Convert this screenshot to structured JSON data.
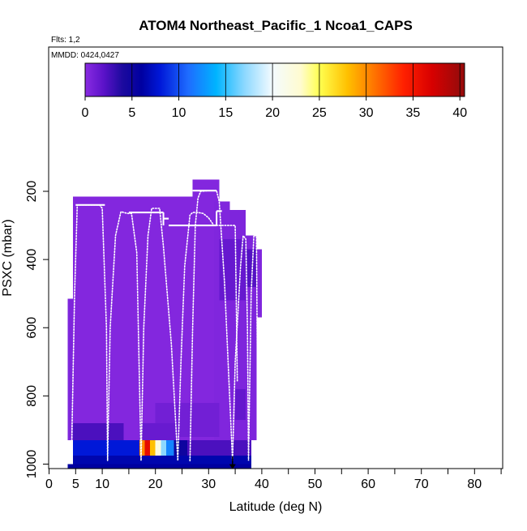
{
  "chart_data": {
    "type": "heatmap",
    "title": "ATOM4 Northeast_Pacific_1 Ncoa1_CAPS",
    "flights_label": "Flts: 1,2",
    "mmdd_label": "MMDD: 0424,0427",
    "xlabel": "Latitude (deg N)",
    "ylabel": "PSXC (mbar)",
    "xlim": [
      0,
      85
    ],
    "ylim": [
      1020,
      100
    ],
    "y_reversed": true,
    "x_tick_labels": [
      "0",
      "5",
      "10",
      "20",
      "30",
      "40",
      "50",
      "60",
      "70",
      "80"
    ],
    "x_tick_values": [
      0,
      5,
      10,
      20,
      30,
      40,
      50,
      60,
      70,
      80
    ],
    "x_minor_ticks": [
      15,
      25,
      35,
      45,
      55,
      65,
      75,
      85
    ],
    "y_tick_labels": [
      "200",
      "400",
      "600",
      "800",
      "1000"
    ],
    "y_tick_values": [
      200,
      400,
      600,
      800,
      1000
    ],
    "colorbar": {
      "min": 0,
      "max": 40.5,
      "tick_labels": [
        "0",
        "5",
        "10",
        "15",
        "20",
        "25",
        "30",
        "35",
        "40"
      ],
      "tick_values": [
        0,
        5,
        10,
        15,
        20,
        25,
        30,
        35,
        40
      ],
      "divisions": [
        0,
        5,
        10,
        15,
        20,
        25,
        30,
        35,
        40
      ],
      "stops": [
        {
          "v": 0,
          "c": "#8a2be2"
        },
        {
          "v": 2,
          "c": "#5a12c8"
        },
        {
          "v": 4,
          "c": "#1c0a9e"
        },
        {
          "v": 6,
          "c": "#0000a0"
        },
        {
          "v": 8,
          "c": "#0018d8"
        },
        {
          "v": 11,
          "c": "#1e6cff"
        },
        {
          "v": 14,
          "c": "#00b4ff"
        },
        {
          "v": 17,
          "c": "#8cd8ff"
        },
        {
          "v": 20,
          "c": "#f4fbff"
        },
        {
          "v": 23,
          "c": "#fffbd0"
        },
        {
          "v": 25,
          "c": "#ffff50"
        },
        {
          "v": 28,
          "c": "#ffc000"
        },
        {
          "v": 31,
          "c": "#ff7000"
        },
        {
          "v": 34,
          "c": "#ff2000"
        },
        {
          "v": 37,
          "c": "#d80000"
        },
        {
          "v": 40,
          "c": "#9a0a0a"
        }
      ]
    },
    "cells": [
      {
        "x0": 4.5,
        "x1": 31,
        "p0": 215,
        "p1": 930,
        "v": 0.3
      },
      {
        "x0": 27,
        "x1": 32,
        "p0": 165,
        "p1": 260,
        "v": 0.3
      },
      {
        "x0": 31,
        "x1": 34,
        "p0": 230,
        "p1": 930,
        "v": 0.4
      },
      {
        "x0": 34,
        "x1": 37,
        "p0": 255,
        "p1": 930,
        "v": 0.5
      },
      {
        "x0": 37,
        "x1": 39,
        "p0": 330,
        "p1": 930,
        "v": 0.5
      },
      {
        "x0": 39,
        "x1": 40,
        "p0": 370,
        "p1": 570,
        "v": 0.4
      },
      {
        "x0": 3.5,
        "x1": 4.5,
        "p0": 515,
        "p1": 930,
        "v": 0.5
      },
      {
        "x0": 32,
        "x1": 37,
        "p0": 340,
        "p1": 520,
        "v": 1.5
      },
      {
        "x0": 37,
        "x1": 39,
        "p0": 370,
        "p1": 480,
        "v": 2.2
      },
      {
        "x0": 35,
        "x1": 37,
        "p0": 780,
        "p1": 870,
        "v": 1.6
      },
      {
        "x0": 20,
        "x1": 32,
        "p0": 820,
        "p1": 920,
        "v": 1.0
      },
      {
        "x0": 4.5,
        "x1": 14,
        "p0": 880,
        "p1": 930,
        "v": 2.5
      },
      {
        "x0": 17,
        "x1": 24,
        "p0": 880,
        "p1": 930,
        "v": 1.4
      },
      {
        "x0": 4.5,
        "x1": 17,
        "p0": 930,
        "p1": 975,
        "v": 8.0
      },
      {
        "x0": 17,
        "x1": 18,
        "p0": 930,
        "p1": 975,
        "v": 30.0
      },
      {
        "x0": 18,
        "x1": 19,
        "p0": 930,
        "p1": 975,
        "v": 36.0
      },
      {
        "x0": 19,
        "x1": 20,
        "p0": 930,
        "p1": 975,
        "v": 28.0
      },
      {
        "x0": 20,
        "x1": 21,
        "p0": 930,
        "p1": 975,
        "v": 22.0
      },
      {
        "x0": 21,
        "x1": 22,
        "p0": 930,
        "p1": 975,
        "v": 17.0
      },
      {
        "x0": 22,
        "x1": 23.5,
        "p0": 930,
        "p1": 975,
        "v": 12.0
      },
      {
        "x0": 23.5,
        "x1": 26,
        "p0": 930,
        "p1": 975,
        "v": 5.0
      },
      {
        "x0": 26,
        "x1": 38,
        "p0": 930,
        "p1": 975,
        "v": 2.5
      },
      {
        "x0": 4.5,
        "x1": 38,
        "p0": 975,
        "p1": 1000,
        "v": 6.5
      },
      {
        "x0": 3.5,
        "x1": 38,
        "p0": 1000,
        "p1": 1012,
        "v": 6.0
      }
    ],
    "flight_track": [
      [
        4.2,
        990
      ],
      [
        4.8,
        500
      ],
      [
        5.3,
        240
      ],
      [
        6.5,
        240
      ],
      [
        7.5,
        240
      ],
      [
        8.5,
        240
      ],
      [
        9.5,
        240
      ],
      [
        10.0,
        250
      ],
      [
        10.8,
        600
      ],
      [
        11.0,
        990
      ],
      [
        11.5,
        600
      ],
      [
        12.5,
        330
      ],
      [
        13.5,
        260
      ],
      [
        14.8,
        265
      ],
      [
        15.5,
        265
      ],
      [
        16.5,
        380
      ],
      [
        17.3,
        990
      ],
      [
        17.8,
        600
      ],
      [
        18.6,
        330
      ],
      [
        19.3,
        250
      ],
      [
        20.8,
        250
      ],
      [
        21.5,
        360
      ],
      [
        23.0,
        650
      ],
      [
        24.2,
        990
      ],
      [
        24.8,
        700
      ],
      [
        25.5,
        420
      ],
      [
        26.5,
        270
      ],
      [
        27.0,
        262
      ],
      [
        28.0,
        262
      ],
      [
        29.0,
        265
      ],
      [
        30.0,
        278
      ],
      [
        31.0,
        300
      ],
      [
        32.0,
        300
      ],
      [
        33.0,
        300
      ],
      [
        34.0,
        300
      ],
      [
        35.0,
        300
      ],
      [
        35.2,
        520
      ],
      [
        35.4,
        760
      ]
    ],
    "level_legs": [
      {
        "x0": 5.0,
        "x1": 10.5,
        "p": 240
      },
      {
        "x0": 15.0,
        "x1": 21.5,
        "p": 262
      },
      {
        "x0": 21.5,
        "x1": 22.5,
        "p": 280
      },
      {
        "x0": 22.5,
        "x1": 31.5,
        "p": 300
      },
      {
        "x0": 31.5,
        "x1": 32.5,
        "p": 258
      },
      {
        "x0": 27.0,
        "x1": 31.5,
        "p": 198
      }
    ],
    "descent_track": [
      [
        26.5,
        990
      ],
      [
        27.0,
        600
      ],
      [
        27.5,
        300
      ],
      [
        28.0,
        220
      ],
      [
        28.5,
        200
      ],
      [
        30.0,
        198
      ],
      [
        31.5,
        198
      ],
      [
        32.0,
        230
      ],
      [
        33.0,
        470
      ],
      [
        34.5,
        990
      ],
      [
        35.0,
        700
      ],
      [
        36.0,
        420
      ],
      [
        36.5,
        330
      ],
      [
        37.0,
        340
      ],
      [
        37.3,
        600
      ],
      [
        37.5,
        990
      ],
      [
        38.0,
        500
      ],
      [
        38.5,
        330
      ],
      [
        39.0,
        330
      ],
      [
        39.3,
        990
      ]
    ],
    "marker": {
      "x": 34.5,
      "p": 1010
    }
  }
}
